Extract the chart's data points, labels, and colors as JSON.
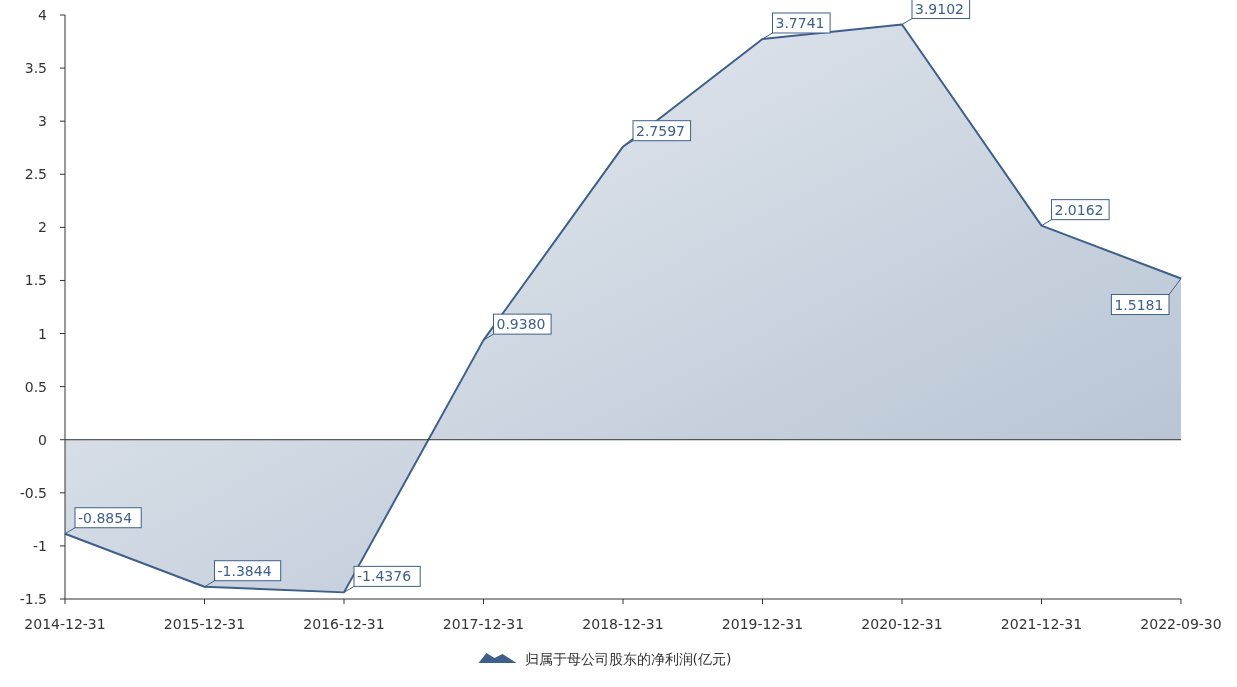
{
  "chart_data": {
    "type": "area",
    "categories": [
      "2014-12-31",
      "2015-12-31",
      "2016-12-31",
      "2017-12-31",
      "2018-12-31",
      "2019-12-31",
      "2020-12-31",
      "2021-12-31",
      "2022-09-30"
    ],
    "series": [
      {
        "name": "归属于母公司股东的净利润(亿元)",
        "color": "#3d5f8a",
        "values": [
          -0.8854,
          -1.3844,
          -1.4376,
          0.938,
          2.7597,
          3.7741,
          3.9102,
          2.0162,
          1.5181
        ],
        "value_labels": [
          "-0.8854",
          "-1.3844",
          "-1.4376",
          "0.9380",
          "2.7597",
          "3.7741",
          "3.9102",
          "2.0162",
          "1.5181"
        ]
      }
    ],
    "ylim": [
      -1.5,
      4
    ],
    "yticks": [
      -1.5,
      -1,
      -0.5,
      0,
      0.5,
      1,
      1.5,
      2,
      2.5,
      3,
      3.5,
      4
    ],
    "ref_lines": [
      {
        "axis": "y",
        "value": 0,
        "color": "#333333"
      }
    ],
    "legend": "bottom",
    "grid": false
  }
}
